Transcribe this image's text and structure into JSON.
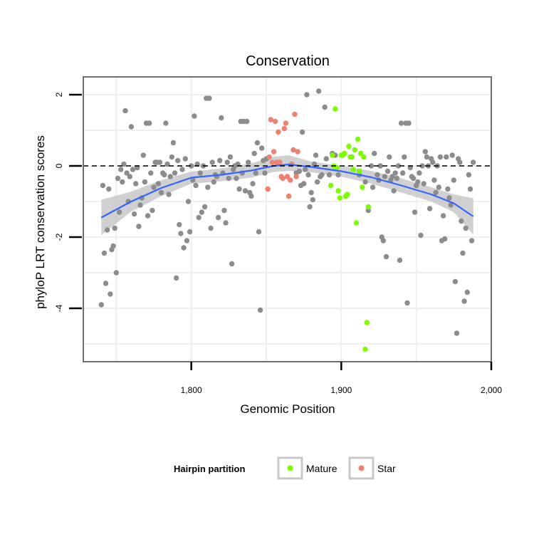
{
  "chart_data": {
    "type": "scatter",
    "title": "Conservation",
    "xlabel": "Genomic Position",
    "ylabel": "phyloP LRT conservation scores",
    "xlim": [
      1728,
      2000
    ],
    "ylim": [
      -5.5,
      2.5
    ],
    "x_ticks": [
      1800,
      1900,
      2000
    ],
    "x_tick_labels": [
      "1,800",
      "1,900",
      "2,000"
    ],
    "y_ticks": [
      2,
      0,
      -2,
      -4
    ],
    "y_tick_labels": [
      "2",
      "0",
      "-2",
      "-4"
    ],
    "reference_line": {
      "y": 0,
      "style": "dashed"
    },
    "grid": true,
    "legend": {
      "title": "Hairpin partition",
      "placement": "bottom",
      "entries": [
        {
          "label": "Mature",
          "color": "#7cfc00"
        },
        {
          "label": "Star",
          "color": "#f08070"
        }
      ]
    },
    "colors": {
      "other": "#8c8c8c",
      "Mature": "#7cfc00",
      "Star": "#f08070",
      "smooth_line": "#3366ff",
      "ribbon": "#c8c8c8"
    },
    "smooth": {
      "x": [
        1740,
        1760,
        1780,
        1800,
        1820,
        1840,
        1855,
        1865,
        1880,
        1900,
        1920,
        1940,
        1960,
        1975,
        1988
      ],
      "y": [
        -1.45,
        -1.0,
        -0.62,
        -0.33,
        -0.25,
        -0.13,
        0.0,
        0.04,
        -0.03,
        -0.15,
        -0.32,
        -0.55,
        -0.8,
        -1.05,
        -1.42
      ],
      "lower": [
        -1.95,
        -1.28,
        -0.85,
        -0.5,
        -0.43,
        -0.33,
        -0.17,
        -0.14,
        -0.18,
        -0.3,
        -0.5,
        -0.75,
        -1.0,
        -1.3,
        -1.93
      ],
      "upper": [
        -0.95,
        -0.72,
        -0.4,
        -0.16,
        -0.07,
        0.07,
        0.26,
        0.3,
        0.12,
        0.0,
        -0.14,
        -0.35,
        -0.6,
        -0.8,
        -0.91
      ]
    },
    "series": [
      {
        "name": "",
        "color": "#8c8c8c",
        "points": [
          [
            1740,
            -3.9
          ],
          [
            1741,
            -0.55
          ],
          [
            1742,
            -2.45
          ],
          [
            1743,
            -3.3
          ],
          [
            1744,
            -1.8
          ],
          [
            1745,
            -0.65
          ],
          [
            1746,
            -3.6
          ],
          [
            1747,
            -2.35
          ],
          [
            1748,
            -2.25
          ],
          [
            1749,
            -1.75
          ],
          [
            1750,
            -3.0
          ],
          [
            1751,
            -0.35
          ],
          [
            1752,
            -1.3
          ],
          [
            1753,
            -0.1
          ],
          [
            1754,
            -0.45
          ],
          [
            1755,
            0.05
          ],
          [
            1756,
            1.55
          ],
          [
            1757,
            -0.2
          ],
          [
            1758,
            -1.0
          ],
          [
            1759,
            -0.3
          ],
          [
            1760,
            1.1
          ],
          [
            1761,
            -0.1
          ],
          [
            1762,
            -1.35
          ],
          [
            1763,
            -0.5
          ],
          [
            1764,
            -0.05
          ],
          [
            1765,
            -1.7
          ],
          [
            1766,
            -1.1
          ],
          [
            1767,
            -0.9
          ],
          [
            1768,
            0.3
          ],
          [
            1769,
            -0.45
          ],
          [
            1770,
            1.2
          ],
          [
            1771,
            -1.4
          ],
          [
            1772,
            1.2
          ],
          [
            1773,
            -0.2
          ],
          [
            1774,
            -1.25
          ],
          [
            1775,
            -0.6
          ],
          [
            1776,
            0.1
          ],
          [
            1777,
            0.1
          ],
          [
            1778,
            -0.5
          ],
          [
            1779,
            0.1
          ],
          [
            1780,
            -0.75
          ],
          [
            1781,
            -0.2
          ],
          [
            1782,
            -0.25
          ],
          [
            1783,
            1.2
          ],
          [
            1784,
            0.05
          ],
          [
            1785,
            -0.8
          ],
          [
            1786,
            -0.3
          ],
          [
            1787,
            0.25
          ],
          [
            1788,
            0.65
          ],
          [
            1789,
            -0.2
          ],
          [
            1790,
            -3.15
          ],
          [
            1791,
            0.15
          ],
          [
            1792,
            -1.65
          ],
          [
            1793,
            -1.9
          ],
          [
            1794,
            -0.1
          ],
          [
            1795,
            -2.3
          ],
          [
            1796,
            0.2
          ],
          [
            1797,
            -2.1
          ],
          [
            1798,
            -1.0
          ],
          [
            1799,
            -1.85
          ],
          [
            1800,
            0.0
          ],
          [
            1801,
            -0.4
          ],
          [
            1802,
            1.4
          ],
          [
            1803,
            -0.55
          ],
          [
            1804,
            0.05
          ],
          [
            1805,
            -1.45
          ],
          [
            1806,
            -0.2
          ],
          [
            1807,
            -1.3
          ],
          [
            1808,
            0.0
          ],
          [
            1809,
            -1.15
          ],
          [
            1810,
            1.9
          ],
          [
            1811,
            -0.6
          ],
          [
            1812,
            1.9
          ],
          [
            1813,
            -1.75
          ],
          [
            1814,
            0.1
          ],
          [
            1815,
            -0.45
          ],
          [
            1816,
            -0.25
          ],
          [
            1817,
            -0.3
          ],
          [
            1818,
            -1.45
          ],
          [
            1819,
            0.15
          ],
          [
            1820,
            1.35
          ],
          [
            1821,
            -0.2
          ],
          [
            1822,
            -1.25
          ],
          [
            1823,
            -1.6
          ],
          [
            1824,
            0.1
          ],
          [
            1825,
            -0.35
          ],
          [
            1826,
            0.25
          ],
          [
            1827,
            -2.75
          ],
          [
            1828,
            -0.1
          ],
          [
            1829,
            0.0
          ],
          [
            1830,
            -0.35
          ],
          [
            1831,
            0.05
          ],
          [
            1832,
            -0.65
          ],
          [
            1833,
            1.25
          ],
          [
            1834,
            -0.2
          ],
          [
            1835,
            1.25
          ],
          [
            1836,
            -0.7
          ],
          [
            1837,
            1.25
          ],
          [
            1838,
            0.1
          ],
          [
            1839,
            -0.75
          ],
          [
            1840,
            -0.85
          ],
          [
            1841,
            -0.5
          ],
          [
            1842,
            0.35
          ],
          [
            1843,
            -0.2
          ],
          [
            1844,
            0.65
          ],
          [
            1845,
            -1.85
          ],
          [
            1846,
            -4.05
          ],
          [
            1847,
            0.5
          ],
          [
            1848,
            0.15
          ],
          [
            1849,
            -0.2
          ],
          [
            1850,
            0.2
          ],
          [
            1851,
            -0.65
          ],
          [
            1870,
            -0.2
          ],
          [
            1872,
            -0.15
          ],
          [
            1873,
            -0.55
          ],
          [
            1874,
            0.95
          ],
          [
            1875,
            -0.5
          ],
          [
            1876,
            -0.1
          ],
          [
            1877,
            2.0
          ],
          [
            1878,
            -0.25
          ],
          [
            1879,
            -1.15
          ],
          [
            1880,
            -0.75
          ],
          [
            1881,
            -0.95
          ],
          [
            1882,
            0.05
          ],
          [
            1883,
            0.3
          ],
          [
            1884,
            -0.45
          ],
          [
            1885,
            2.1
          ],
          [
            1886,
            -0.3
          ],
          [
            1887,
            -0.25
          ],
          [
            1889,
            1.65
          ],
          [
            1890,
            0.2
          ],
          [
            1892,
            -0.25
          ],
          [
            1894,
            0.35
          ],
          [
            1896,
            0.3
          ],
          [
            1898,
            -0.25
          ],
          [
            1912,
            -0.25
          ],
          [
            1916,
            -0.45
          ],
          [
            1918,
            -1.25
          ],
          [
            1920,
            0.0
          ],
          [
            1921,
            -0.6
          ],
          [
            1922,
            0.35
          ],
          [
            1924,
            -0.25
          ],
          [
            1925,
            -0.4
          ],
          [
            1926,
            0.0
          ],
          [
            1927,
            -2.0
          ],
          [
            1928,
            -2.1
          ],
          [
            1929,
            -0.3
          ],
          [
            1930,
            -2.55
          ],
          [
            1931,
            -0.15
          ],
          [
            1932,
            0.25
          ],
          [
            1933,
            -0.4
          ],
          [
            1934,
            -0.3
          ],
          [
            1935,
            -0.7
          ],
          [
            1936,
            -0.2
          ],
          [
            1937,
            -0.35
          ],
          [
            1938,
            0.0
          ],
          [
            1939,
            -2.65
          ],
          [
            1940,
            1.2
          ],
          [
            1941,
            -0.2
          ],
          [
            1942,
            0.25
          ],
          [
            1943,
            1.2
          ],
          [
            1944,
            -3.85
          ],
          [
            1945,
            1.2
          ],
          [
            1946,
            -0.05
          ],
          [
            1947,
            -0.3
          ],
          [
            1948,
            -0.35
          ],
          [
            1949,
            -1.3
          ],
          [
            1950,
            -0.55
          ],
          [
            1951,
            -0.45
          ],
          [
            1952,
            -0.2
          ],
          [
            1953,
            -1.95
          ],
          [
            1954,
            0.0
          ],
          [
            1955,
            -0.5
          ],
          [
            1956,
            0.4
          ],
          [
            1957,
            0.25
          ],
          [
            1958,
            0.0
          ],
          [
            1959,
            -1.2
          ],
          [
            1960,
            0.2
          ],
          [
            1961,
            0.1
          ],
          [
            1962,
            -0.4
          ],
          [
            1963,
            -0.75
          ],
          [
            1964,
            0.0
          ],
          [
            1965,
            -0.6
          ],
          [
            1966,
            0.25
          ],
          [
            1967,
            -2.1
          ],
          [
            1968,
            -1.4
          ],
          [
            1969,
            -2.05
          ],
          [
            1970,
            0.25
          ],
          [
            1971,
            -0.65
          ],
          [
            1972,
            -0.9
          ],
          [
            1973,
            -1.1
          ],
          [
            1974,
            0.3
          ],
          [
            1975,
            -0.4
          ],
          [
            1976,
            -3.25
          ],
          [
            1977,
            -4.7
          ],
          [
            1978,
            0.2
          ],
          [
            1979,
            0.1
          ],
          [
            1980,
            -1.55
          ],
          [
            1981,
            -2.45
          ],
          [
            1982,
            -3.8
          ],
          [
            1983,
            -1.75
          ],
          [
            1984,
            -3.55
          ],
          [
            1985,
            -0.25
          ],
          [
            1986,
            -0.65
          ],
          [
            1987,
            -2.1
          ],
          [
            1988,
            0.1
          ]
        ]
      },
      {
        "name": "Mature",
        "color": "#7cfc00",
        "points": [
          [
            1893,
            -0.55
          ],
          [
            1894,
            0.3
          ],
          [
            1895,
            0.0
          ],
          [
            1896,
            1.6
          ],
          [
            1897,
            -0.05
          ],
          [
            1898,
            -0.7
          ],
          [
            1899,
            -0.9
          ],
          [
            1900,
            0.3
          ],
          [
            1901,
            0.3
          ],
          [
            1902,
            0.35
          ],
          [
            1903,
            -0.85
          ],
          [
            1904,
            -0.8
          ],
          [
            1905,
            0.55
          ],
          [
            1906,
            0.25
          ],
          [
            1907,
            0.25
          ],
          [
            1908,
            -0.1
          ],
          [
            1909,
            0.45
          ],
          [
            1910,
            -1.6
          ],
          [
            1911,
            0.75
          ],
          [
            1912,
            -0.15
          ],
          [
            1913,
            0.35
          ],
          [
            1914,
            -0.6
          ],
          [
            1915,
            0.25
          ],
          [
            1916,
            -5.15
          ],
          [
            1917,
            -4.4
          ],
          [
            1918,
            -1.15
          ]
        ]
      },
      {
        "name": "Star",
        "color": "#f08070",
        "points": [
          [
            1851,
            -0.65
          ],
          [
            1852,
            0.25
          ],
          [
            1853,
            1.3
          ],
          [
            1854,
            0.1
          ],
          [
            1855,
            0.4
          ],
          [
            1856,
            1.25
          ],
          [
            1857,
            0.1
          ],
          [
            1858,
            0.95
          ],
          [
            1859,
            0.1
          ],
          [
            1860,
            -0.3
          ],
          [
            1861,
            -0.35
          ],
          [
            1862,
            1.05
          ],
          [
            1863,
            1.2
          ],
          [
            1864,
            -0.3
          ],
          [
            1865,
            -0.85
          ],
          [
            1866,
            -0.4
          ],
          [
            1867,
            0.05
          ],
          [
            1868,
            0.45
          ],
          [
            1869,
            1.45
          ],
          [
            1870,
            -0.3
          ],
          [
            1871,
            0.4
          ]
        ]
      }
    ]
  }
}
